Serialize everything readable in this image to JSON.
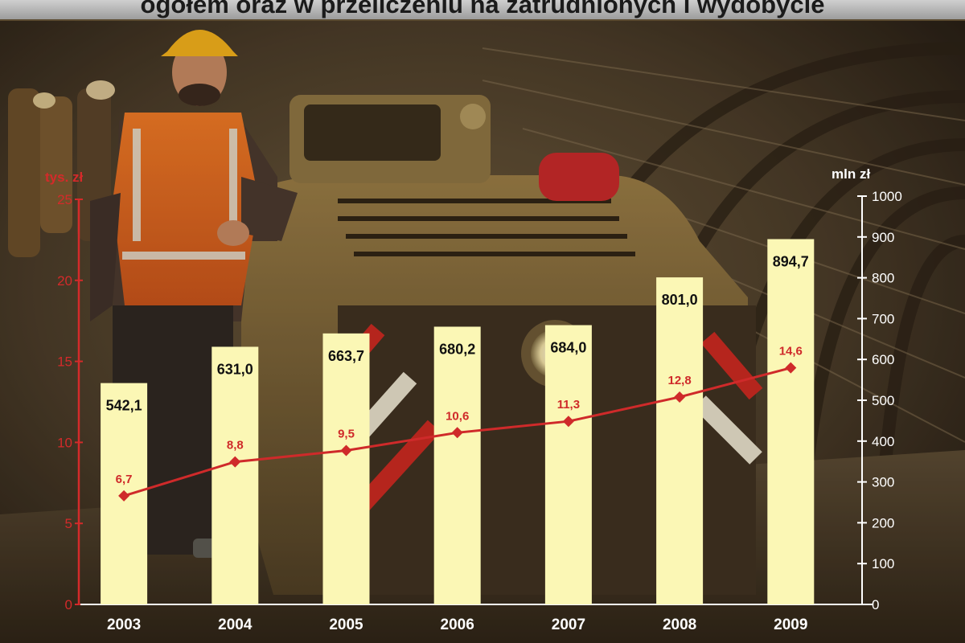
{
  "title": "ogółem oraz w przeliczeniu na zatrudnionych i wydobycie",
  "colors": {
    "bar": "#fbf7b5",
    "line": "#cf2a2a",
    "right_axis": "#ffffff",
    "left_axis": "#d42a2a",
    "bar_label": "#111111",
    "year_label": "#ffffff"
  },
  "chart_data": {
    "type": "bar",
    "categories": [
      "2003",
      "2004",
      "2005",
      "2006",
      "2007",
      "2008",
      "2009"
    ],
    "series": [
      {
        "type": "bar",
        "axis": "right",
        "values": [
          542.1,
          631.0,
          663.7,
          680.2,
          684.0,
          801.0,
          894.7
        ],
        "labels": [
          "542,1",
          "631,0",
          "663,7",
          "680,2",
          "684,0",
          "801,0",
          "894,7"
        ]
      },
      {
        "type": "line",
        "axis": "left",
        "marker": "diamond",
        "values": [
          6.7,
          8.8,
          9.5,
          10.6,
          11.3,
          12.8,
          14.6
        ],
        "labels": [
          "6,7",
          "8,8",
          "9,5",
          "10,6",
          "11,3",
          "12,8",
          "14,6"
        ]
      }
    ],
    "left_axis": {
      "unit_label": "tys. zł",
      "range": [
        0,
        25
      ],
      "ticks": [
        "0",
        "5",
        "10",
        "15",
        "20",
        "25"
      ]
    },
    "right_axis": {
      "unit_label": "mln zł",
      "range": [
        0,
        1000
      ],
      "ticks": [
        "0",
        "100",
        "200",
        "300",
        "400",
        "500",
        "600",
        "700",
        "800",
        "900",
        "1000"
      ]
    },
    "grid": false,
    "legend": "none"
  }
}
